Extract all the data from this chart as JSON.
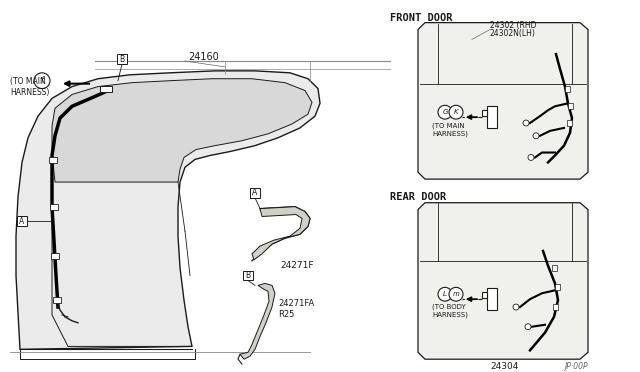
{
  "bg_color": "#ffffff",
  "line_color": "#404040",
  "dark_line": "#1a1a1a",
  "fill_body": "#e8e8e8",
  "fill_window": "#d0d0d0",
  "title_front": "FRONT DOOR",
  "title_rear": "REAR DOOR",
  "label_24160": "24160",
  "label_24271F": "24271F",
  "label_24271FA": "24271FA",
  "label_R25": "R25",
  "label_24302_rh": "24302 (RHD",
  "label_24302_lh": "24302N(LH)",
  "label_24304": "24304",
  "label_code": "JP·00P",
  "label_f": "(TO MAIN\nHARNESS)",
  "label_front_conn": "(TO MAIN\nHARNESS)",
  "label_rear_conn": "(TO BODY\nHARNESS)"
}
